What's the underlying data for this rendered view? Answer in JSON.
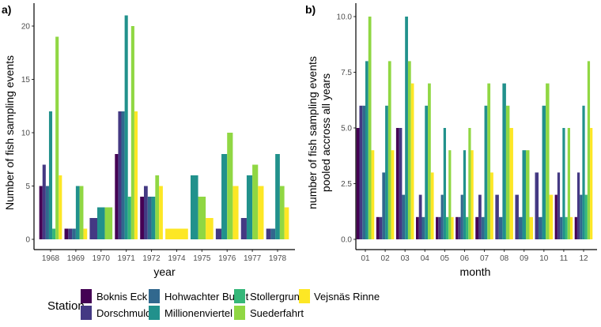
{
  "legend": {
    "title": "Station",
    "stations": [
      "Boknis Eck",
      "Dorschmulde",
      "Hohwachter Bucht",
      "Millionenviertel",
      "Stollergrund",
      "Suederfahrt",
      "Vejsnäs Rinne"
    ],
    "colors": [
      "#440154",
      "#443983",
      "#31688e",
      "#21918c",
      "#35b779",
      "#90d743",
      "#fde725"
    ]
  },
  "chart_data": [
    {
      "type": "bar",
      "panel_label": "a)",
      "xlabel": "year",
      "ylabel": "Number of fish sampling events",
      "ylim": [
        0,
        21.5
      ],
      "yticks": [
        "0",
        "5",
        "10",
        "15",
        "20"
      ],
      "ytick_values": [
        0,
        5,
        10,
        15,
        20
      ],
      "categories": [
        "1968",
        "1969",
        "1970",
        "1971",
        "1972",
        "1974",
        "1975",
        "1976",
        "1977",
        "1978"
      ],
      "series": [
        {
          "name": "Boknis Eck",
          "values": [
            5,
            1,
            null,
            8,
            4,
            null,
            null,
            null,
            null,
            null
          ]
        },
        {
          "name": "Dorschmulde",
          "values": [
            7,
            1,
            2,
            12,
            5,
            null,
            null,
            1,
            2,
            1
          ]
        },
        {
          "name": "Hohwachter Bucht",
          "values": [
            5,
            1,
            null,
            12,
            4,
            null,
            null,
            null,
            null,
            1
          ]
        },
        {
          "name": "Millionenviertel",
          "values": [
            12,
            5,
            3,
            21,
            4,
            null,
            6,
            8,
            6,
            8
          ]
        },
        {
          "name": "Stollergrund",
          "values": [
            1,
            null,
            null,
            4,
            null,
            null,
            null,
            null,
            null,
            null
          ]
        },
        {
          "name": "Suederfahrt",
          "values": [
            19,
            5,
            3,
            20,
            6,
            null,
            4,
            10,
            7,
            5
          ]
        },
        {
          "name": "Vejsnäs Rinne",
          "values": [
            6,
            1,
            null,
            12,
            5,
            1,
            2,
            5,
            5,
            3
          ]
        }
      ]
    },
    {
      "type": "bar",
      "panel_label": "b)",
      "xlabel": "month",
      "ylabel": "number of fish sampling events pooled accross all years",
      "ylabel_lines": [
        "number of fish sampling events",
        "pooled accross all years"
      ],
      "ylim": [
        0,
        10.4
      ],
      "yticks": [
        "0.0",
        "2.5",
        "5.0",
        "7.5",
        "10.0"
      ],
      "ytick_values": [
        0,
        2.5,
        5,
        7.5,
        10
      ],
      "categories": [
        "01",
        "02",
        "03",
        "04",
        "05",
        "06",
        "07",
        "08",
        "09",
        "10",
        "11",
        "12"
      ],
      "series": [
        {
          "name": "Boknis Eck",
          "values": [
            5,
            1,
            5,
            1,
            1,
            1,
            1,
            null,
            null,
            null,
            2,
            1
          ]
        },
        {
          "name": "Dorschmulde",
          "values": [
            6,
            1,
            5,
            2,
            1,
            1,
            2,
            2,
            2,
            3,
            3,
            3
          ]
        },
        {
          "name": "Hohwachter Bucht",
          "values": [
            6,
            3,
            2,
            1,
            2,
            2,
            1,
            1,
            1,
            1,
            1,
            2
          ]
        },
        {
          "name": "Millionenviertel",
          "values": [
            8,
            6,
            10,
            6,
            5,
            4,
            6,
            7,
            4,
            6,
            5,
            6
          ]
        },
        {
          "name": "Stollergrund",
          "values": [
            null,
            null,
            null,
            null,
            1,
            1,
            null,
            null,
            null,
            null,
            1,
            2
          ]
        },
        {
          "name": "Suederfahrt",
          "values": [
            10,
            8,
            8,
            7,
            4,
            5,
            7,
            6,
            4,
            7,
            5,
            8
          ]
        },
        {
          "name": "Vejsnäs Rinne",
          "values": [
            4,
            4,
            7,
            3,
            1,
            4,
            3,
            5,
            1,
            2,
            1,
            5
          ]
        }
      ]
    }
  ]
}
